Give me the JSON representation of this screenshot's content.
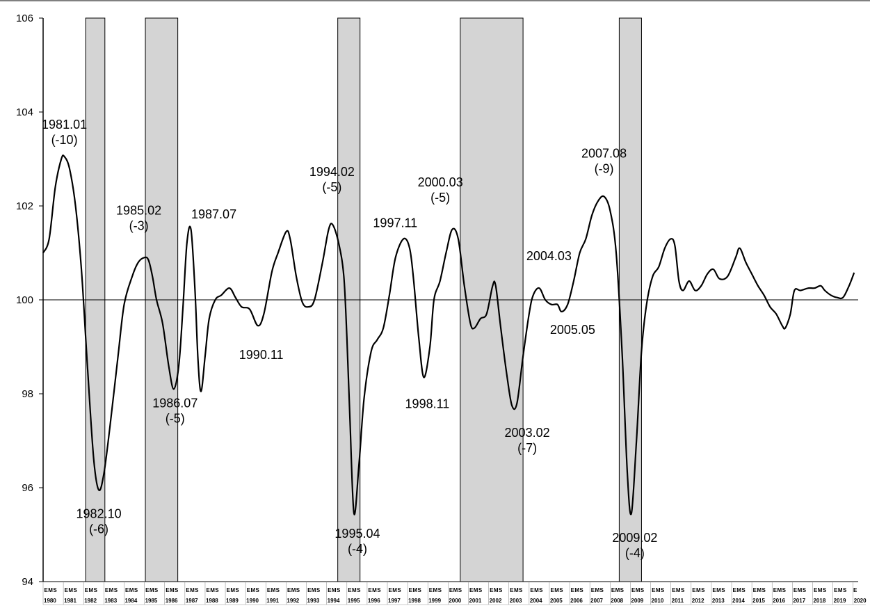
{
  "chart_data": {
    "type": "line",
    "title": "",
    "xlabel": "",
    "ylabel": "",
    "ylim": [
      94,
      106
    ],
    "yticks": [
      "94",
      "96",
      "98",
      "100",
      "102",
      "104",
      "106"
    ],
    "reference_line": 100,
    "grid": false,
    "x_sublabels": [
      "E",
      "M",
      "S"
    ],
    "years": [
      "1980",
      "1981",
      "1982",
      "1983",
      "1984",
      "1985",
      "1986",
      "1987",
      "1988",
      "1989",
      "1990",
      "1991",
      "1992",
      "1993",
      "1994",
      "1995",
      "1996",
      "1997",
      "1998",
      "1999",
      "2000",
      "2001",
      "2002",
      "2003",
      "2004",
      "2005",
      "2006",
      "2007",
      "2008",
      "2009",
      "2010",
      "2011",
      "2012",
      "2013",
      "2014",
      "2015",
      "2016",
      "2017",
      "2018",
      "2019",
      "2020"
    ],
    "recession_bands": [
      {
        "start": 1982.1,
        "end": 1983.05
      },
      {
        "start": 1985.05,
        "end": 1986.65
      },
      {
        "start": 1994.55,
        "end": 1995.65
      },
      {
        "start": 2000.6,
        "end": 2003.7
      },
      {
        "start": 2008.45,
        "end": 2009.55
      }
    ],
    "series": [
      {
        "points": [
          [
            1980.0,
            101.0
          ],
          [
            1980.3,
            101.3
          ],
          [
            1980.6,
            102.4
          ],
          [
            1980.9,
            103.0
          ],
          [
            1981.05,
            103.05
          ],
          [
            1981.3,
            102.8
          ],
          [
            1981.6,
            102.0
          ],
          [
            1981.9,
            100.6
          ],
          [
            1982.2,
            98.5
          ],
          [
            1982.5,
            96.6
          ],
          [
            1982.75,
            95.95
          ],
          [
            1983.0,
            96.3
          ],
          [
            1983.3,
            97.3
          ],
          [
            1983.7,
            98.8
          ],
          [
            1984.0,
            99.9
          ],
          [
            1984.4,
            100.5
          ],
          [
            1984.7,
            100.8
          ],
          [
            1985.0,
            100.9
          ],
          [
            1985.2,
            100.85
          ],
          [
            1985.4,
            100.5
          ],
          [
            1985.6,
            100.0
          ],
          [
            1985.9,
            99.5
          ],
          [
            1986.2,
            98.6
          ],
          [
            1986.45,
            98.1
          ],
          [
            1986.7,
            98.6
          ],
          [
            1986.9,
            99.8
          ],
          [
            1987.1,
            101.2
          ],
          [
            1987.3,
            101.5
          ],
          [
            1987.5,
            100.2
          ],
          [
            1987.65,
            98.7
          ],
          [
            1987.8,
            98.05
          ],
          [
            1988.0,
            98.8
          ],
          [
            1988.2,
            99.6
          ],
          [
            1988.5,
            100.0
          ],
          [
            1988.8,
            100.1
          ],
          [
            1989.2,
            100.25
          ],
          [
            1989.5,
            100.05
          ],
          [
            1989.8,
            99.85
          ],
          [
            1990.2,
            99.8
          ],
          [
            1990.6,
            99.45
          ],
          [
            1990.9,
            99.7
          ],
          [
            1991.3,
            100.6
          ],
          [
            1991.6,
            101.0
          ],
          [
            1992.0,
            101.45
          ],
          [
            1992.2,
            101.3
          ],
          [
            1992.5,
            100.5
          ],
          [
            1992.8,
            99.95
          ],
          [
            1993.1,
            99.85
          ],
          [
            1993.4,
            100.0
          ],
          [
            1993.8,
            100.8
          ],
          [
            1994.1,
            101.5
          ],
          [
            1994.3,
            101.6
          ],
          [
            1994.6,
            101.2
          ],
          [
            1994.85,
            100.5
          ],
          [
            1995.0,
            99.2
          ],
          [
            1995.15,
            97.5
          ],
          [
            1995.35,
            95.45
          ],
          [
            1995.6,
            96.5
          ],
          [
            1995.85,
            97.9
          ],
          [
            1996.2,
            98.9
          ],
          [
            1996.5,
            99.15
          ],
          [
            1996.8,
            99.4
          ],
          [
            1997.1,
            100.1
          ],
          [
            1997.4,
            100.9
          ],
          [
            1997.8,
            101.3
          ],
          [
            1998.1,
            101.1
          ],
          [
            1998.3,
            100.4
          ],
          [
            1998.55,
            99.2
          ],
          [
            1998.8,
            98.35
          ],
          [
            1999.1,
            99.0
          ],
          [
            1999.3,
            100.0
          ],
          [
            1999.6,
            100.4
          ],
          [
            1999.9,
            101.0
          ],
          [
            2000.2,
            101.5
          ],
          [
            2000.5,
            101.3
          ],
          [
            2000.8,
            100.3
          ],
          [
            2001.1,
            99.5
          ],
          [
            2001.3,
            99.4
          ],
          [
            2001.6,
            99.6
          ],
          [
            2001.9,
            99.7
          ],
          [
            2002.2,
            100.3
          ],
          [
            2002.35,
            100.3
          ],
          [
            2002.6,
            99.4
          ],
          [
            2002.9,
            98.4
          ],
          [
            2003.15,
            97.75
          ],
          [
            2003.4,
            97.8
          ],
          [
            2003.7,
            98.8
          ],
          [
            2004.0,
            99.7
          ],
          [
            2004.2,
            100.1
          ],
          [
            2004.5,
            100.25
          ],
          [
            2004.8,
            100.0
          ],
          [
            2005.1,
            99.9
          ],
          [
            2005.4,
            99.9
          ],
          [
            2005.6,
            99.75
          ],
          [
            2005.9,
            99.9
          ],
          [
            2006.2,
            100.4
          ],
          [
            2006.5,
            101.0
          ],
          [
            2006.8,
            101.3
          ],
          [
            2007.1,
            101.8
          ],
          [
            2007.4,
            102.1
          ],
          [
            2007.7,
            102.2
          ],
          [
            2008.0,
            101.9
          ],
          [
            2008.3,
            101.0
          ],
          [
            2008.6,
            98.8
          ],
          [
            2008.85,
            96.3
          ],
          [
            2009.05,
            95.45
          ],
          [
            2009.3,
            97.0
          ],
          [
            2009.55,
            98.9
          ],
          [
            2009.8,
            99.9
          ],
          [
            2010.1,
            100.5
          ],
          [
            2010.4,
            100.7
          ],
          [
            2010.7,
            101.1
          ],
          [
            2011.0,
            101.3
          ],
          [
            2011.2,
            101.15
          ],
          [
            2011.4,
            100.4
          ],
          [
            2011.6,
            100.2
          ],
          [
            2011.9,
            100.4
          ],
          [
            2012.2,
            100.2
          ],
          [
            2012.5,
            100.3
          ],
          [
            2012.8,
            100.55
          ],
          [
            2013.1,
            100.65
          ],
          [
            2013.4,
            100.45
          ],
          [
            2013.8,
            100.5
          ],
          [
            2014.2,
            100.9
          ],
          [
            2014.4,
            101.1
          ],
          [
            2014.7,
            100.8
          ],
          [
            2015.0,
            100.55
          ],
          [
            2015.3,
            100.3
          ],
          [
            2015.6,
            100.1
          ],
          [
            2015.9,
            99.85
          ],
          [
            2016.2,
            99.7
          ],
          [
            2016.5,
            99.45
          ],
          [
            2016.65,
            99.4
          ],
          [
            2016.9,
            99.7
          ],
          [
            2017.1,
            100.2
          ],
          [
            2017.4,
            100.2
          ],
          [
            2017.8,
            100.25
          ],
          [
            2018.1,
            100.25
          ],
          [
            2018.4,
            100.3
          ],
          [
            2018.6,
            100.2
          ],
          [
            2018.9,
            100.1
          ],
          [
            2019.2,
            100.05
          ],
          [
            2019.5,
            100.05
          ],
          [
            2019.8,
            100.3
          ],
          [
            2020.05,
            100.58
          ]
        ]
      }
    ],
    "annotations": [
      {
        "label": "1981.01",
        "sub": "(-10)",
        "x": 1981.05,
        "y": 103.05,
        "pos": "above"
      },
      {
        "label": "1982.10",
        "sub": "(-6)",
        "x": 1982.75,
        "y": 95.95,
        "pos": "below"
      },
      {
        "label": "1985.02",
        "sub": "(-3)",
        "x": 1985.0,
        "y": 100.9,
        "pos": "above"
      },
      {
        "label": "1986.07",
        "sub": "(-5)",
        "x": 1986.45,
        "y": 98.1,
        "pos": "below"
      },
      {
        "label": "1987.07",
        "sub": "",
        "x": 1987.3,
        "y": 101.5,
        "pos": "above"
      },
      {
        "label": "1990.11",
        "sub": "",
        "x": 1990.6,
        "y": 99.45,
        "pos": "below"
      },
      {
        "label": "1994.02",
        "sub": "(-5)",
        "x": 1994.3,
        "y": 101.6,
        "pos": "above"
      },
      {
        "label": "1995.04",
        "sub": "(-4)",
        "x": 1995.35,
        "y": 95.45,
        "pos": "below"
      },
      {
        "label": "1997.11",
        "sub": "",
        "x": 1997.8,
        "y": 101.3,
        "pos": "above"
      },
      {
        "label": "1998.11",
        "sub": "",
        "x": 1998.8,
        "y": 98.35,
        "pos": "below"
      },
      {
        "label": "2000.03",
        "sub": "(-5)",
        "x": 2000.2,
        "y": 101.5,
        "pos": "above"
      },
      {
        "label": "2003.02",
        "sub": "(-7)",
        "x": 2003.15,
        "y": 97.75,
        "pos": "below"
      },
      {
        "label": "2004.03",
        "sub": "",
        "x": 2004.5,
        "y": 100.25,
        "pos": "above"
      },
      {
        "label": "2005.05",
        "sub": "",
        "x": 2005.6,
        "y": 99.75,
        "pos": "below"
      },
      {
        "label": "2007.08",
        "sub": "(-9)",
        "x": 2007.7,
        "y": 102.2,
        "pos": "above"
      },
      {
        "label": "2009.02",
        "sub": "(-4)",
        "x": 2009.05,
        "y": 95.45,
        "pos": "below"
      }
    ]
  }
}
